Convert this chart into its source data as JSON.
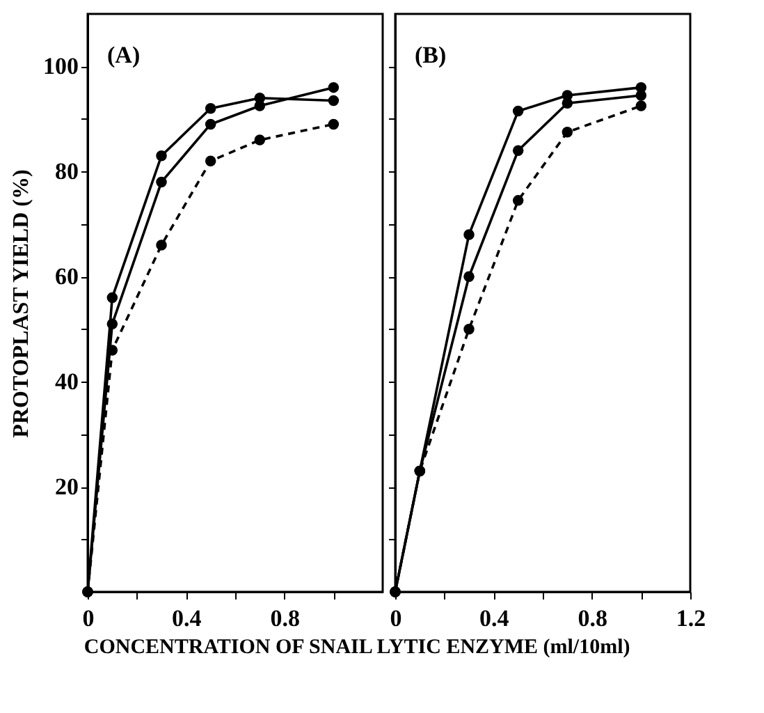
{
  "chart_data": [
    {
      "type": "line",
      "title": "(A)",
      "ylabel": "PROTOPLAST YIELD (%)",
      "xlabel": "CONCENTRATION OF SNAIL LYTIC ENZYME (ml/10ml)",
      "marker": "circle",
      "grid": false,
      "xlim": [
        0,
        1.2
      ],
      "ylim": [
        0,
        110
      ],
      "xticks": [
        0,
        {
          "value": 0.2,
          "label": null
        },
        0.4,
        {
          "value": 0.6,
          "label": null
        },
        0.8,
        {
          "value": 1.0,
          "label": null
        }
      ],
      "yticks": [
        {
          "value": 10,
          "label": null
        },
        20,
        {
          "value": 30,
          "label": null
        },
        40,
        {
          "value": 50,
          "label": null
        },
        60,
        {
          "value": 70,
          "label": null
        },
        80,
        {
          "value": 90,
          "label": null
        },
        100
      ],
      "x": [
        0,
        0.1,
        0.3,
        0.5,
        0.7,
        1.0
      ],
      "series": [
        {
          "color": "#000000",
          "line_style": "solid",
          "values": [
            0,
            56,
            83,
            92,
            94,
            93.5
          ]
        },
        {
          "color": "#000000",
          "line_style": "solid",
          "values": [
            0,
            51,
            78,
            89,
            92.5,
            96
          ]
        },
        {
          "color": "#000000",
          "line_style": "dashed",
          "values": [
            0,
            46,
            66,
            82,
            86,
            89
          ]
        }
      ]
    },
    {
      "type": "line",
      "title": "(B)",
      "marker": "circle",
      "grid": false,
      "tick_labels": "x",
      "xlim": [
        0,
        1.2
      ],
      "ylim": [
        0,
        110
      ],
      "xticks": [
        0,
        {
          "value": 0.2,
          "label": null
        },
        0.4,
        {
          "value": 0.6,
          "label": null
        },
        0.8,
        {
          "value": 1.0,
          "label": null
        },
        1.2
      ],
      "yticks": [
        {
          "value": 10,
          "label": null
        },
        {
          "value": 20,
          "label": null
        },
        {
          "value": 30,
          "label": null
        },
        {
          "value": 40,
          "label": null
        },
        {
          "value": 50,
          "label": null
        },
        {
          "value": 60,
          "label": null
        },
        {
          "value": 70,
          "label": null
        },
        {
          "value": 80,
          "label": null
        },
        {
          "value": 90,
          "label": null
        },
        {
          "value": 100,
          "label": null
        }
      ],
      "x": [
        0,
        0.1,
        0.3,
        0.5,
        0.7,
        1.0
      ],
      "series": [
        {
          "color": "#000000",
          "line_style": "solid",
          "values": [
            0,
            23,
            68,
            91.5,
            94.5,
            96
          ]
        },
        {
          "color": "#000000",
          "line_style": "solid",
          "values": [
            0,
            23,
            60,
            84,
            93,
            94.5
          ]
        },
        {
          "color": "#000000",
          "line_style": "dashed",
          "values": [
            0,
            23,
            50,
            74.5,
            87.5,
            92.5
          ]
        }
      ]
    }
  ]
}
